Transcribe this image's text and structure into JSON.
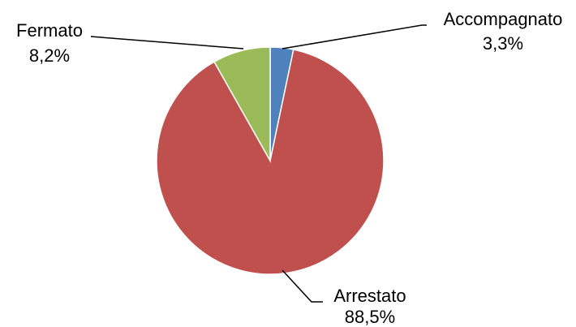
{
  "chart_data": {
    "type": "pie",
    "title": "",
    "legend": "none",
    "slices": [
      {
        "name": "Accompagnato",
        "value": 3.3,
        "label": "3,3%",
        "color": "#4f81bd"
      },
      {
        "name": "Arrestato",
        "value": 88.5,
        "label": "88,5%",
        "color": "#c0504d"
      },
      {
        "name": "Fermato",
        "value": 8.2,
        "label": "8,2%",
        "color": "#9bbb59"
      }
    ],
    "start_angle": "12 o'clock",
    "direction": "clockwise"
  }
}
